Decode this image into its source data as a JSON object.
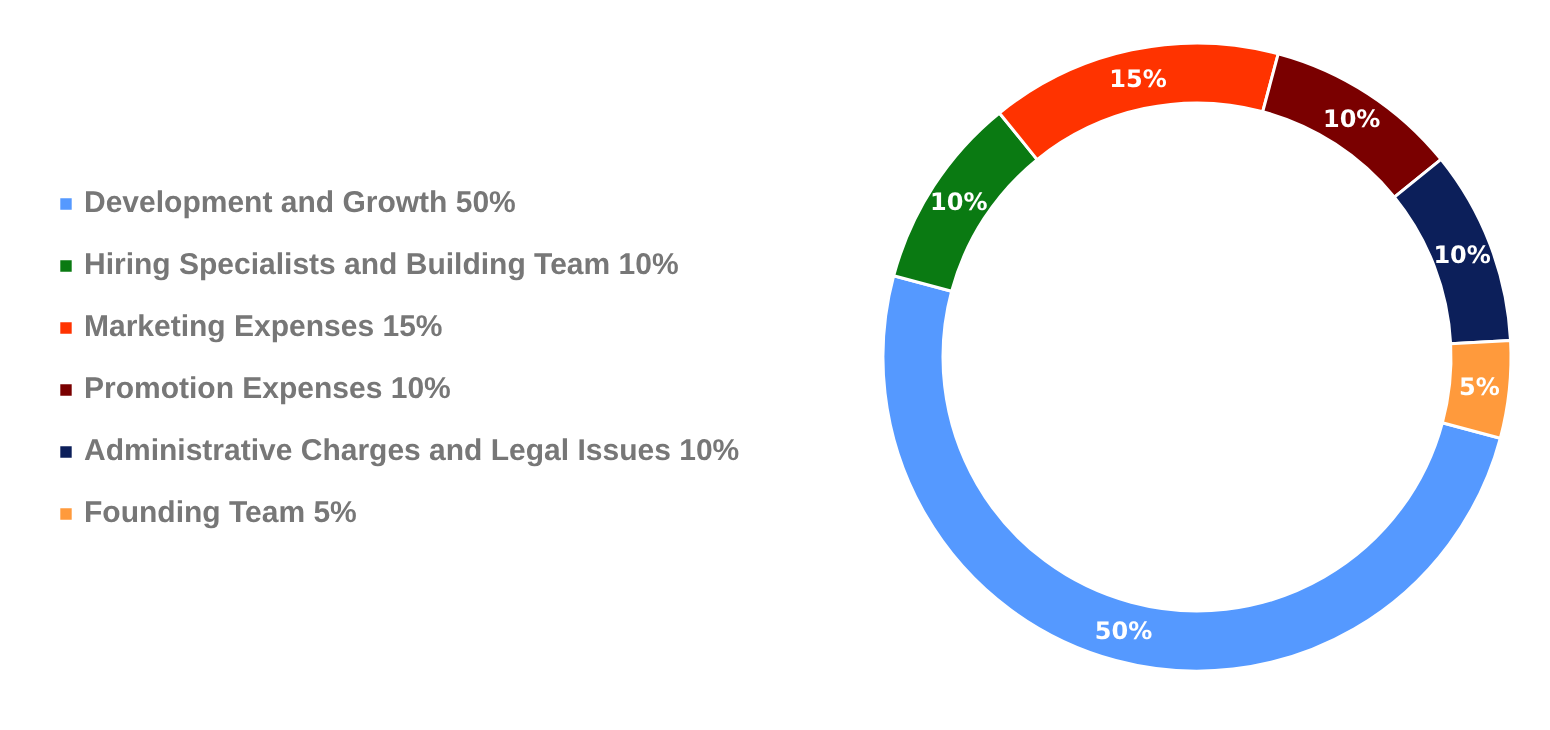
{
  "chart_data": {
    "type": "donut",
    "categories": [
      "Development and Growth 50%",
      "Hiring Specialists and Building Team 10%",
      "Marketing Expenses 15%",
      "Promotion Expenses 10%",
      "Administrative Charges and Legal Issues 10%",
      "Founding Team 5%"
    ],
    "values": [
      50,
      10,
      15,
      10,
      10,
      5
    ],
    "value_labels": [
      "50%",
      "10%",
      "15%",
      "10%",
      "10%",
      "5%"
    ],
    "colors": [
      "#5599ff",
      "#0a7a12",
      "#ff3300",
      "#7a0000",
      "#0c1f5a",
      "#ff9a3c"
    ],
    "legend": "left"
  }
}
